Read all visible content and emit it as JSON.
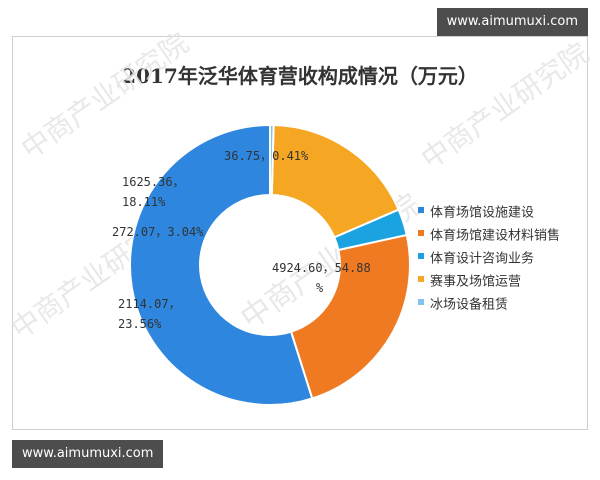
{
  "watermark": {
    "top": "www.aimumuxi.com",
    "bottom": "www.aimumuxi.com"
  },
  "chart_data": {
    "type": "pie",
    "title": "2017年泛华体育营收构成情况（万元）",
    "donut": true,
    "legend_position": "right",
    "slices": [
      {
        "name": "体育场馆设施建设",
        "value": 4924.6,
        "percent": 54.88,
        "label": "4924.60，54.88%",
        "color": "#2e86de"
      },
      {
        "name": "体育场馆建设材料销售",
        "value": 2114.07,
        "percent": 23.56,
        "label": "2114.07，23.56%",
        "color": "#f07a22"
      },
      {
        "name": "体育设计咨询业务",
        "value": 272.07,
        "percent": 3.04,
        "label": "272.07，3.04%",
        "color": "#1aa3e0"
      },
      {
        "name": "赛事及场馆运营",
        "value": 1625.36,
        "percent": 18.11,
        "label": "1625.36，18.11%",
        "color": "#f5a623"
      },
      {
        "name": "冰场设备租赁",
        "value": 36.75,
        "percent": 0.41,
        "label": "36.75，0.41%",
        "color": "#7fc4ef"
      }
    ]
  }
}
